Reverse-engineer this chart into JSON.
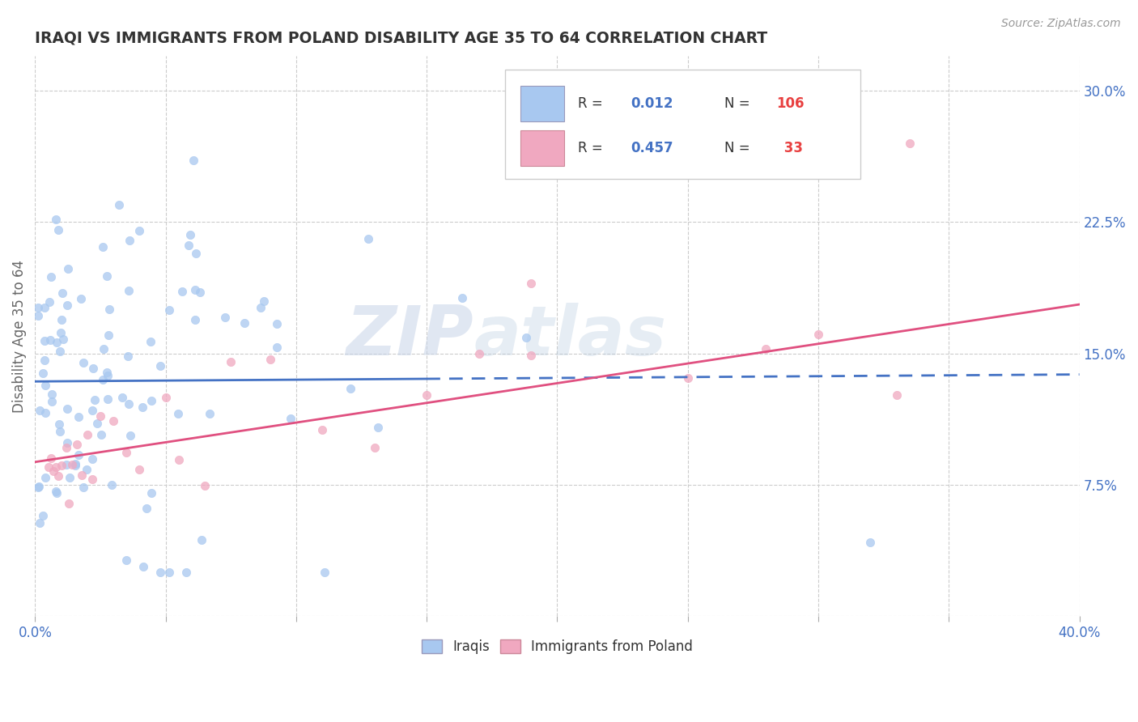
{
  "title": "IRAQI VS IMMIGRANTS FROM POLAND DISABILITY AGE 35 TO 64 CORRELATION CHART",
  "source": "Source: ZipAtlas.com",
  "ylabel": "Disability Age 35 to 64",
  "xlabel": "",
  "xlim": [
    0.0,
    0.4
  ],
  "ylim": [
    0.0,
    0.32
  ],
  "xticks": [
    0.0,
    0.05,
    0.1,
    0.15,
    0.2,
    0.25,
    0.3,
    0.35,
    0.4
  ],
  "yticks": [
    0.0,
    0.075,
    0.15,
    0.225,
    0.3
  ],
  "ytick_labels": [
    "",
    "7.5%",
    "15.0%",
    "22.5%",
    "30.0%"
  ],
  "color_iraqi": "#a8c8f0",
  "color_poland": "#f0a8c0",
  "color_line_iraqi": "#4472c4",
  "color_line_poland": "#e05080",
  "watermark_zip": "ZIP",
  "watermark_atlas": "atlas",
  "background_color": "#ffffff",
  "grid_color": "#cccccc",
  "title_color": "#333333",
  "label_color": "#666666",
  "legend_text_color": "#333333",
  "legend_value_color": "#4472c4",
  "legend_n_color": "#e84040",
  "iraqi_line_y0": 0.134,
  "iraqi_line_y1": 0.138,
  "poland_line_y0": 0.088,
  "poland_line_y1": 0.178,
  "seed": 99
}
